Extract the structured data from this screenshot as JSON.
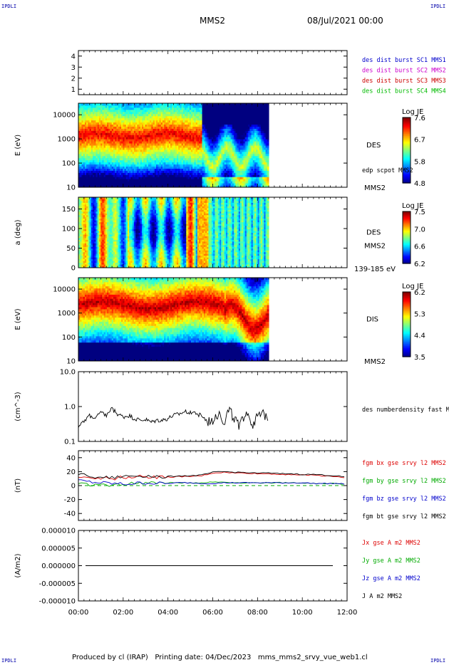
{
  "header": {
    "corner_left": "IPDLI",
    "corner_right": "IPDLI",
    "title": "MMS2",
    "date": "08/Jul/2021 00:00",
    "footer": "Produced by cl (IRAP)   Printing date: 04/Dec/2023   mms_mms2_srvy_vue_web1.cl",
    "corner_bottom_left": "IPDLI",
    "corner_bottom_right": "IPDLI"
  },
  "colors": {
    "mms1": "#0000cc",
    "mms2": "#cc00cc",
    "mms3": "#cc0000",
    "mms4": "#00bb00",
    "bx": "#dd0000",
    "by": "#00aa00",
    "bz": "#0000cc",
    "bt": "#000000"
  },
  "chart_data": [
    {
      "id": "burst",
      "type": "line",
      "yticks": [
        "4",
        "3",
        "2",
        "1"
      ],
      "ylim": [
        0.5,
        4.5
      ],
      "legend": [
        {
          "label": "des dist burst SC1 MMS1",
          "color": "#0000cc"
        },
        {
          "label": "des dist burst SC2 MMS2",
          "color": "#cc00cc"
        },
        {
          "label": "des dist burst SC3 MMS3",
          "color": "#cc0000"
        },
        {
          "label": "des dist burst SC4 MMS4",
          "color": "#00bb00"
        }
      ]
    },
    {
      "id": "des_energy",
      "type": "heatmap",
      "ylabel": "E (eV)",
      "yticks": [
        "10000",
        "1000",
        "100",
        "10"
      ],
      "ylog": true,
      "ylim": [
        10,
        30000
      ],
      "data_end_hour": 8.5,
      "instrument": "DES",
      "sc": "MMS2",
      "extra_label": "edp scpot MMS2",
      "colorbar": {
        "title": "Log JE",
        "ticks": [
          "7.6",
          "6.7",
          "5.8",
          "4.8"
        ],
        "range": [
          4.8,
          7.6
        ]
      }
    },
    {
      "id": "des_pitch",
      "type": "heatmap",
      "ylabel": "a (deg)",
      "yticks": [
        "150",
        "100",
        "50",
        "0"
      ],
      "ylim": [
        0,
        180
      ],
      "data_end_hour": 8.5,
      "instrument": "DES",
      "sc": "MMS2",
      "energy_band": "139-185 eV",
      "colorbar": {
        "title": "Log JE",
        "ticks": [
          "7.5",
          "7.0",
          "6.6",
          "6.2"
        ],
        "range": [
          6.2,
          7.5
        ]
      }
    },
    {
      "id": "dis_energy",
      "type": "heatmap",
      "ylabel": "E (eV)",
      "yticks": [
        "10000",
        "1000",
        "100",
        "10"
      ],
      "ylog": true,
      "ylim": [
        10,
        30000
      ],
      "data_end_hour": 8.5,
      "instrument": "DIS",
      "sc": "MMS2",
      "colorbar": {
        "title": "Log JE",
        "ticks": [
          "6.2",
          "5.3",
          "4.4",
          "3.5"
        ],
        "range": [
          3.5,
          6.2
        ]
      }
    },
    {
      "id": "density",
      "type": "line",
      "ylabel": "(cm^-3)",
      "yticks": [
        "10.0",
        "1.0",
        "0.1"
      ],
      "ylog": true,
      "ylim": [
        0.1,
        10
      ],
      "legend": [
        {
          "label": "des numberdensity fast M",
          "color": "#000000"
        }
      ],
      "series": [
        {
          "name": "des numberdensity fast M",
          "color": "#000000",
          "x": [
            0.0,
            0.25,
            0.5,
            0.75,
            1.0,
            1.25,
            1.5,
            1.75,
            2.0,
            2.25,
            2.5,
            2.75,
            3.0,
            3.25,
            3.5,
            3.75,
            4.0,
            4.25,
            4.5,
            4.75,
            5.0,
            5.25,
            5.5,
            5.75,
            6.0,
            6.25,
            6.5,
            6.75,
            7.0,
            7.25,
            7.5,
            7.75,
            8.0,
            8.25,
            8.5
          ],
          "y": [
            0.28,
            0.35,
            0.55,
            0.45,
            0.65,
            0.55,
            0.85,
            0.6,
            0.5,
            0.55,
            0.45,
            0.4,
            0.42,
            0.35,
            0.4,
            0.4,
            0.45,
            0.55,
            0.6,
            0.7,
            0.7,
            0.65,
            0.55,
            0.35,
            0.45,
            0.7,
            0.35,
            0.8,
            0.4,
            0.3,
            0.75,
            0.3,
            0.5,
            0.6,
            0.5
          ]
        }
      ]
    },
    {
      "id": "magnetic",
      "type": "line",
      "ylabel": "(nT)",
      "yticks": [
        "40",
        "20",
        "0",
        "-20",
        "-40"
      ],
      "ylim": [
        -50,
        50
      ],
      "legend": [
        {
          "label": "fgm bx gse srvy l2 MMS2",
          "color": "#dd0000"
        },
        {
          "label": "fgm by gse srvy l2 MMS2",
          "color": "#00aa00"
        },
        {
          "label": "fgm bz gse srvy l2 MMS2",
          "color": "#0000cc"
        },
        {
          "label": "fgm bt gse srvy l2 MMS2",
          "color": "#000000"
        }
      ],
      "x": [
        0,
        0.5,
        1,
        1.5,
        2,
        2.5,
        3,
        3.5,
        4,
        4.5,
        5,
        5.5,
        6,
        6.5,
        7,
        7.5,
        8,
        8.5,
        9,
        9.5,
        10,
        10.5,
        11,
        11.5,
        12
      ],
      "series": [
        {
          "name": "fgm bx gse srvy l2 MMS2",
          "color": "#dd0000",
          "y": [
            14,
            12,
            11,
            10,
            12,
            13,
            13,
            12,
            12,
            13,
            13,
            14,
            18,
            19,
            18,
            18,
            17,
            17,
            16,
            16,
            15,
            15,
            14,
            13,
            11
          ]
        },
        {
          "name": "fgm by gse srvy l2 MMS2",
          "color": "#00aa00",
          "y": [
            3,
            2,
            1,
            0,
            2,
            3,
            4,
            5,
            4,
            4,
            4,
            4,
            5,
            5,
            4,
            4,
            4,
            4,
            4,
            4,
            4,
            3,
            3,
            3,
            2
          ]
        },
        {
          "name": "fgm bz gse srvy l2 MMS2",
          "color": "#0000cc",
          "y": [
            7,
            5,
            4,
            3,
            2,
            3,
            4,
            3,
            3,
            4,
            4,
            3,
            3,
            4,
            4,
            4,
            4,
            4,
            4,
            4,
            4,
            3,
            3,
            3,
            2
          ]
        },
        {
          "name": "fgm bt gse srvy l2 MMS2",
          "color": "#000000",
          "y": [
            16,
            14,
            12,
            11,
            13,
            14,
            14,
            13,
            13,
            14,
            14,
            15,
            19,
            20,
            19,
            19,
            18,
            18,
            17,
            17,
            16,
            16,
            15,
            14,
            12
          ]
        }
      ]
    },
    {
      "id": "current",
      "type": "line",
      "ylabel": "(A/m2)",
      "yticks": [
        "0.000010",
        "0.000005",
        "0.000000",
        "-0.000005",
        "-0.000010"
      ],
      "ylim": [
        -1e-05,
        1e-05
      ],
      "legend": [
        {
          "label": "Jx gse A m2 MMS2",
          "color": "#dd0000"
        },
        {
          "label": "Jy gse A m2 MMS2",
          "color": "#00aa00"
        },
        {
          "label": "Jz gse A m2 MMS2",
          "color": "#0000cc"
        },
        {
          "label": "J A m2 MMS2",
          "color": "#000000"
        }
      ]
    }
  ],
  "time_axis": {
    "ticks": [
      "00:00",
      "02:00",
      "04:00",
      "06:00",
      "08:00",
      "10:00",
      "12:00"
    ],
    "range_hours": [
      0,
      12
    ]
  }
}
